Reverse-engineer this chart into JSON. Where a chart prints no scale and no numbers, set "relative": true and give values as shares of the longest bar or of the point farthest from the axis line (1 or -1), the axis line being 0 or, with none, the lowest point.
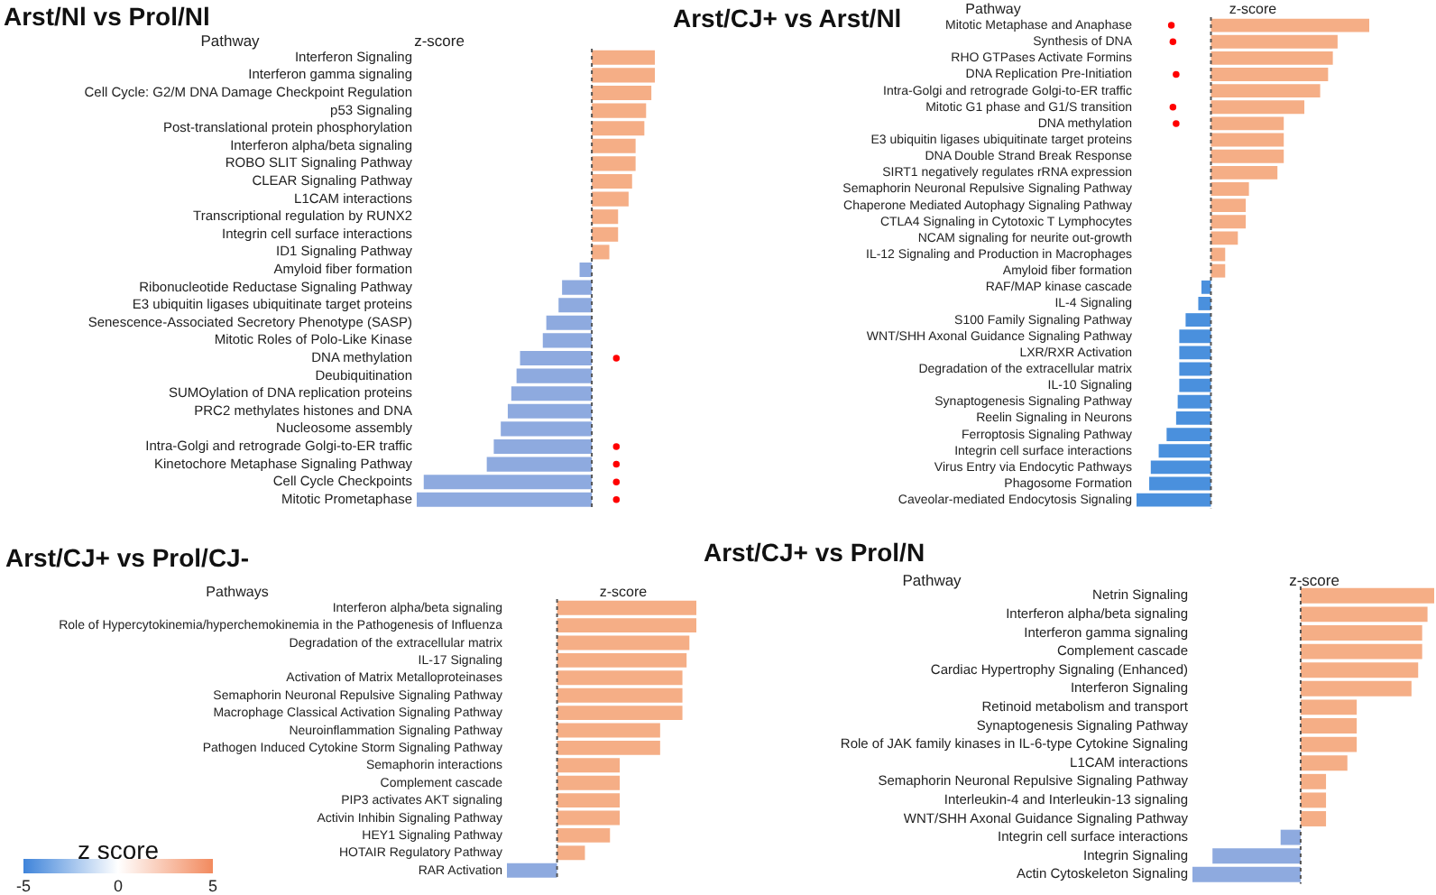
{
  "chart_data": [
    {
      "type": "bar",
      "title": "Arst/Nl vs Prol/Nl",
      "ylabel": "Pathway",
      "xlabel": "z-score",
      "orientation": "horizontal",
      "relative": true,
      "categories": [
        "Interferon Signaling",
        "Interferon gamma signaling",
        "Cell Cycle: G2/M DNA Damage Checkpoint Regulation",
        "p53 Signaling",
        "Post-translational protein phosphorylation",
        "Interferon alpha/beta signaling",
        "ROBO SLIT Signaling Pathway",
        "CLEAR Signaling Pathway",
        "L1CAM interactions",
        "Transcriptional regulation by RUNX2",
        "Integrin cell surface interactions",
        "ID1 Signaling Pathway",
        "Amyloid fiber formation",
        "Ribonucleotide Reductase Signaling Pathway",
        "E3 ubiquitin ligases ubiquitinate target proteins",
        "Senescence-Associated Secretory Phenotype (SASP)",
        "Mitotic Roles of Polo-Like Kinase",
        "DNA methylation",
        "Deubiquitination",
        "SUMOylation of DNA replication proteins",
        "PRC2 methylates histones and DNA",
        "Nucleosome assembly",
        "Intra-Golgi and retrograde Golgi-to-ER traffic",
        "Kinetochore Metaphase Signaling Pathway",
        "Cell Cycle Checkpoints",
        "Mitotic Prometaphase"
      ],
      "series": [
        {
          "type": "bar",
          "values": [
            0.36,
            0.36,
            0.34,
            0.31,
            0.3,
            0.25,
            0.25,
            0.23,
            0.21,
            0.15,
            0.15,
            0.1,
            -0.07,
            -0.17,
            -0.19,
            -0.26,
            -0.28,
            -0.41,
            -0.43,
            -0.46,
            -0.48,
            -0.52,
            -0.56,
            -0.6,
            -0.96,
            -1
          ],
          "colors": [
            "#f5ae86",
            "#f5ae86",
            "#f5ae86",
            "#f5ae86",
            "#f5ae86",
            "#f5ae86",
            "#f5ae86",
            "#f5ae86",
            "#f5ae86",
            "#f5ae86",
            "#f5ae86",
            "#f5ae86",
            "#8eaadf",
            "#8eaadf",
            "#8eaadf",
            "#8eaadf",
            "#8eaadf",
            "#8eaadf",
            "#8eaadf",
            "#8eaadf",
            "#8eaadf",
            "#8eaadf",
            "#8eaadf",
            "#8eaadf",
            "#8eaadf",
            "#8eaadf"
          ]
        },
        {
          "type": "scatter",
          "marker": "circle",
          "color": "#ff0000",
          "x": [
            "DNA methylation",
            "Intra-Golgi and retrograde Golgi-to-ER traffic",
            "Kinetochore Metaphase Signaling Pathway",
            "Cell Cycle Checkpoints",
            "Mitotic Prometaphase"
          ],
          "values": [
            0.14,
            0.14,
            0.14,
            0.14,
            0.14
          ]
        }
      ],
      "ref_lines": [
        {
          "axis": "x",
          "value": 0,
          "line_style": "dotted",
          "color": "#555555"
        }
      ]
    },
    {
      "type": "bar",
      "title": "Arst/CJ+ vs Arst/Nl",
      "ylabel": "Pathway",
      "xlabel": "z-score",
      "orientation": "horizontal",
      "relative": true,
      "categories": [
        "Mitotic Metaphase and Anaphase",
        "Synthesis of DNA",
        "RHO GTPases Activate Formins",
        "DNA Replication Pre-Initiation",
        "Intra-Golgi and retrograde Golgi-to-ER traffic",
        "Mitotic G1 phase and G1/S transition",
        "DNA methylation",
        "E3 ubiquitin ligases ubiquitinate target proteins",
        "DNA Double Strand Break Response",
        "SIRT1 negatively regulates rRNA expression",
        "Semaphorin Neuronal Repulsive Signaling Pathway",
        "Chaperone Mediated Autophagy Signaling Pathway",
        "CTLA4 Signaling in Cytotoxic T Lymphocytes",
        "NCAM signaling for neurite out-growth",
        "IL-12 Signaling and Production in Macrophages",
        "Amyloid fiber formation",
        "RAF/MAP kinase cascade",
        "IL-4 Signaling",
        "S100 Family Signaling Pathway",
        "WNT/SHH Axonal Guidance Signaling Pathway",
        "LXR/RXR Activation",
        "Degradation of the extracellular matrix",
        "IL-10 Signaling",
        "Synaptogenesis Signaling Pathway",
        "Reelin Signaling in Neurons",
        "Ferroptosis Signaling Pathway",
        "Integrin cell surface interactions",
        "Virus Entry via Endocytic Pathways",
        "Phagosome Formation",
        "Caveolar-mediated Endocytosis Signaling"
      ],
      "series": [
        {
          "type": "bar",
          "values": [
            1,
            0.8,
            0.77,
            0.74,
            0.69,
            0.59,
            0.46,
            0.46,
            0.46,
            0.42,
            0.24,
            0.22,
            0.22,
            0.17,
            0.09,
            0.09,
            -0.06,
            -0.08,
            -0.16,
            -0.2,
            -0.2,
            -0.2,
            -0.2,
            -0.21,
            -0.22,
            -0.28,
            -0.33,
            -0.38,
            -0.39,
            -0.47
          ],
          "colors": [
            "#f5ae86",
            "#f5ae86",
            "#f5ae86",
            "#f5ae86",
            "#f5ae86",
            "#f5ae86",
            "#f5ae86",
            "#f5ae86",
            "#f5ae86",
            "#f5ae86",
            "#f5ae86",
            "#f5ae86",
            "#f5ae86",
            "#f5ae86",
            "#f5ae86",
            "#f5ae86",
            "#4a90dd",
            "#4a90dd",
            "#4a90dd",
            "#4a90dd",
            "#4a90dd",
            "#4a90dd",
            "#4a90dd",
            "#4a90dd",
            "#4a90dd",
            "#4a90dd",
            "#4a90dd",
            "#4a90dd",
            "#4a90dd",
            "#4a90dd"
          ]
        },
        {
          "type": "scatter",
          "marker": "circle",
          "color": "#ff0000",
          "x": [
            "Mitotic Metaphase and Anaphase",
            "Synthesis of DNA",
            "DNA Replication Pre-Initiation",
            "Mitotic G1 phase and G1/S transition",
            "DNA methylation"
          ],
          "values": [
            -0.25,
            -0.24,
            -0.22,
            -0.24,
            -0.22
          ]
        }
      ],
      "ref_lines": [
        {
          "axis": "x",
          "value": 0,
          "line_style": "dotted",
          "color": "#555555"
        }
      ]
    },
    {
      "type": "bar",
      "title": "Arst/CJ+ vs Prol/CJ-",
      "ylabel": "Pathways",
      "xlabel": "z-score",
      "orientation": "horizontal",
      "relative": true,
      "categories": [
        "Interferon alpha/beta signaling",
        "Role of Hypercytokinemia/hyperchemokinemia in the Pathogenesis of Influenza",
        "Degradation of the extracellular matrix",
        "IL-17 Signaling",
        "Activation of Matrix Metalloproteinases",
        "Semaphorin Neuronal Repulsive Signaling Pathway",
        "Macrophage Classical Activation Signaling Pathway",
        "Neuroinflammation Signaling Pathway",
        "Pathogen Induced Cytokine Storm Signaling Pathway",
        "Semaphorin interactions",
        "Complement cascade",
        "PIP3 activates AKT signaling",
        "Activin Inhibin Signaling Pathway",
        "HEY1 Signaling Pathway",
        "HOTAIR Regulatory Pathway",
        "RAR Activation"
      ],
      "series": [
        {
          "type": "bar",
          "values": [
            1,
            1,
            0.95,
            0.93,
            0.9,
            0.9,
            0.9,
            0.74,
            0.74,
            0.45,
            0.45,
            0.45,
            0.45,
            0.38,
            0.2,
            -0.36
          ],
          "colors": [
            "#f5ae86",
            "#f5ae86",
            "#f5ae86",
            "#f5ae86",
            "#f5ae86",
            "#f5ae86",
            "#f5ae86",
            "#f5ae86",
            "#f5ae86",
            "#f5ae86",
            "#f5ae86",
            "#f5ae86",
            "#f5ae86",
            "#f5ae86",
            "#f5ae86",
            "#8eaadf"
          ]
        }
      ],
      "ref_lines": [
        {
          "axis": "x",
          "value": 0,
          "line_style": "dotted",
          "color": "#555555"
        }
      ]
    },
    {
      "type": "bar",
      "title": "Arst/CJ+ vs Prol/N",
      "ylabel": "Pathway",
      "xlabel": "z-score",
      "orientation": "horizontal",
      "relative": true,
      "categories": [
        "Netrin Signaling",
        "Interferon alpha/beta signaling",
        "Interferon gamma signaling",
        "Complement cascade",
        "Cardiac Hypertrophy Signaling (Enhanced)",
        "Interferon Signaling",
        "Retinoid metabolism and transport",
        "Synaptogenesis Signaling Pathway",
        "Role of JAK family kinases in IL-6-type Cytokine Signaling",
        "L1CAM interactions",
        "Semaphorin Neuronal Repulsive Signaling Pathway",
        "Interleukin-4 and Interleukin-13 signaling",
        "WNT/SHH Axonal Guidance Signaling Pathway",
        "Integrin cell surface interactions",
        "Integrin Signaling",
        "Actin Cytoskeleton Signaling"
      ],
      "series": [
        {
          "type": "bar",
          "values": [
            1,
            0.95,
            0.91,
            0.91,
            0.88,
            0.83,
            0.42,
            0.42,
            0.42,
            0.35,
            0.19,
            0.19,
            0.19,
            -0.15,
            -0.66,
            -0.81
          ],
          "colors": [
            "#f5ae86",
            "#f5ae86",
            "#f5ae86",
            "#f5ae86",
            "#f5ae86",
            "#f5ae86",
            "#f5ae86",
            "#f5ae86",
            "#f5ae86",
            "#f5ae86",
            "#f5ae86",
            "#f5ae86",
            "#f5ae86",
            "#8eaadf",
            "#8eaadf",
            "#8eaadf"
          ]
        }
      ],
      "ref_lines": [
        {
          "axis": "x",
          "value": 0,
          "line_style": "dotted",
          "color": "#555555"
        }
      ]
    },
    {
      "type": "other",
      "clabel": "z score",
      "annotations": [
        "-5",
        "0",
        "5"
      ]
    }
  ]
}
